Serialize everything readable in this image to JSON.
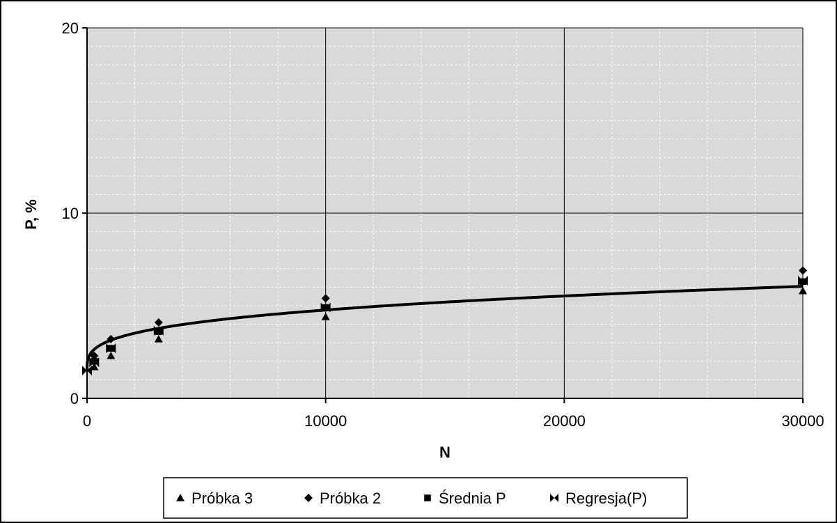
{
  "chart_data": {
    "type": "scatter",
    "xlabel": "N",
    "ylabel": "P, %",
    "xlim": [
      0,
      30000
    ],
    "ylim": [
      0,
      20
    ],
    "x_ticks": [
      "0",
      "10000",
      "20000",
      "30000"
    ],
    "y_ticks": [
      "0",
      "10",
      "20"
    ],
    "grid": true,
    "legend_position": "bottom",
    "colors": {
      "plot_bg": "#d9d9d9",
      "series": "#000000",
      "frame": "#000000"
    },
    "series": [
      {
        "name": "Próbka 3",
        "marker": "triangle",
        "x": [
          300,
          1000,
          3000,
          10000,
          30000
        ],
        "y": [
          1.7,
          2.3,
          3.2,
          4.4,
          5.8
        ]
      },
      {
        "name": "Próbka 2",
        "marker": "diamond",
        "x": [
          300,
          1000,
          3000,
          10000,
          30000
        ],
        "y": [
          2.3,
          3.2,
          4.1,
          5.4,
          6.9
        ]
      },
      {
        "name": "Średnia P",
        "marker": "square",
        "x": [
          300,
          1000,
          3000,
          10000,
          30000
        ],
        "y": [
          2.0,
          2.7,
          3.6,
          4.9,
          6.3
        ]
      },
      {
        "name": "Regresja(P)",
        "marker": "bowtie",
        "line": true,
        "x": [
          0,
          300,
          1000,
          3000,
          10000,
          30000
        ],
        "y": [
          1.5,
          1.95,
          2.7,
          3.65,
          4.9,
          6.35
        ]
      }
    ]
  }
}
